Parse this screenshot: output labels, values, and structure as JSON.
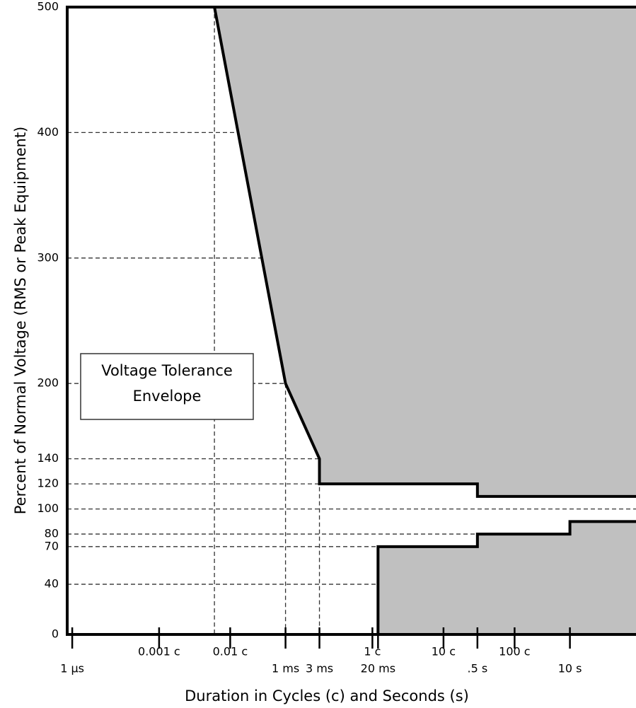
{
  "chart_data": {
    "type": "area",
    "y_label": "Percent of Normal Voltage (RMS or Peak Equipment)",
    "x_label": "Duration in Cycles (c) and Seconds (s)",
    "annotation": [
      "Voltage Tolerance",
      "Envelope"
    ],
    "xscale": "log",
    "xlim": [
      8.5e-07,
      85
    ],
    "ylim": [
      0,
      500
    ],
    "yticks": [
      0,
      40,
      70,
      80,
      100,
      120,
      140,
      200,
      300,
      400,
      500
    ],
    "xticks": [
      {
        "value": 1e-06,
        "label": "1 µs"
      },
      {
        "value": 1.6667e-05,
        "label": "0.001 c"
      },
      {
        "value": 0.00016667,
        "label": "0.01 c"
      },
      {
        "value": 0.001,
        "label": "1 ms"
      },
      {
        "value": 0.003,
        "label": "3 ms"
      },
      {
        "value": 0.016667,
        "label": "1 c"
      },
      {
        "value": 0.02,
        "label": "20 ms"
      },
      {
        "value": 0.16667,
        "label": "10 c"
      },
      {
        "value": 0.5,
        "label": ".5 s"
      },
      {
        "value": 1.6667,
        "label": "100 c"
      },
      {
        "value": 10,
        "label": "10 s"
      }
    ],
    "grid": true,
    "fill_color": "#c0c0c0",
    "line_color": "#000000",
    "series": [
      {
        "x": [
          0.0001,
          0.001,
          0.003,
          0.003,
          0.5,
          0.5,
          85
        ],
        "values": [
          500,
          200,
          140,
          120,
          120,
          110,
          110
        ],
        "fill_to": "top"
      },
      {
        "x": [
          0.02,
          0.02,
          0.5,
          0.5,
          10,
          10,
          85
        ],
        "values": [
          0,
          70,
          70,
          80,
          80,
          90,
          90
        ],
        "fill_to": "bottom"
      }
    ]
  }
}
